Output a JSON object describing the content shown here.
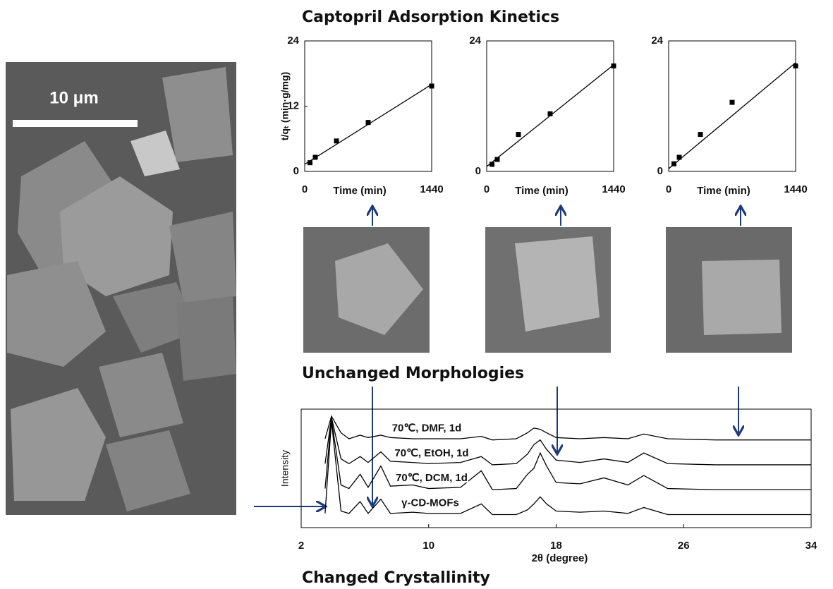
{
  "title": "Captopril Adsorption Kinetics",
  "middle_caption": "Unchanged Morphologies",
  "bottom_caption": "Changed Crystallinity",
  "scale_bar": "10 μm",
  "chart_data": [
    {
      "type": "scatter",
      "ylabel": "t/qₜ (min·g/mg)",
      "xlabel": "Time (min)",
      "x": [
        60,
        120,
        360,
        720,
        1440
      ],
      "values": [
        1.6,
        2.6,
        5.6,
        9.0,
        15.7
      ],
      "fit": {
        "x": [
          0,
          1440
        ],
        "values": [
          1.3,
          16
        ]
      },
      "xlim": [
        0,
        1440
      ],
      "ylim": [
        0,
        24
      ],
      "xticks": [
        0,
        1440
      ],
      "yticks": [
        0,
        12,
        24
      ],
      "color": "#000000"
    },
    {
      "type": "scatter",
      "xlabel": "Time (min)",
      "x": [
        60,
        120,
        360,
        720,
        1440
      ],
      "values": [
        1.3,
        2.2,
        6.8,
        10.6,
        19.4
      ],
      "fit": {
        "x": [
          0,
          1440
        ],
        "values": [
          0.9,
          19.6
        ]
      },
      "xlim": [
        0,
        1440
      ],
      "ylim": [
        0,
        24
      ],
      "xticks": [
        0,
        1440
      ],
      "yticks": [
        0,
        24
      ],
      "color": "#000000"
    },
    {
      "type": "scatter",
      "xlabel": "Time (min)",
      "x": [
        60,
        120,
        360,
        720,
        1440
      ],
      "values": [
        1.4,
        2.6,
        6.8,
        12.7,
        19.4
      ],
      "fit": {
        "x": [
          0,
          1440
        ],
        "values": [
          0.5,
          20
        ]
      },
      "xlim": [
        0,
        1440
      ],
      "ylim": [
        0,
        24
      ],
      "xticks": [
        0,
        1440
      ],
      "yticks": [
        0,
        24
      ],
      "color": "#000000"
    },
    {
      "type": "line",
      "xlabel": "2θ (degree)",
      "ylabel": "Intensity",
      "xlim": [
        2,
        34
      ],
      "ylim": [
        0,
        100
      ],
      "xticks": [
        2,
        10,
        18,
        26,
        34
      ],
      "color": "#000000",
      "x": [
        3.5,
        3.9,
        4.5,
        5.0,
        5.7,
        6.2,
        7.0,
        7.6,
        9.0,
        10.0,
        12.0,
        13.3,
        14.0,
        15.5,
        16.2,
        16.6,
        17.0,
        17.4,
        18.0,
        19.5,
        21.0,
        22.5,
        23.5,
        25.0,
        28.0,
        34.0
      ],
      "series": [
        {
          "name": "70℃, DMF, 1d",
          "values": [
            75,
            94,
            80,
            75,
            78,
            76,
            78,
            76,
            75,
            75,
            75,
            77,
            74,
            75,
            80,
            84,
            83,
            80,
            76,
            75,
            76,
            75,
            79,
            75,
            74,
            74
          ]
        },
        {
          "name": "70℃, EtOH, 1d",
          "values": [
            54,
            93,
            58,
            54,
            60,
            55,
            64,
            56,
            55,
            54,
            55,
            60,
            53,
            54,
            62,
            70,
            74,
            66,
            57,
            55,
            58,
            55,
            63,
            54,
            53,
            53
          ]
        },
        {
          "name": "70℃, DCM, 1d",
          "values": [
            33,
            92,
            36,
            33,
            45,
            34,
            52,
            35,
            36,
            33,
            34,
            48,
            32,
            33,
            45,
            50,
            63,
            52,
            38,
            37,
            42,
            36,
            44,
            33,
            32,
            32
          ]
        },
        {
          "name": "γ-CD-MOFs",
          "values": [
            12,
            90,
            14,
            12,
            22,
            12,
            24,
            12,
            13,
            12,
            12,
            20,
            11,
            11,
            15,
            20,
            26,
            20,
            14,
            13,
            14,
            12,
            17,
            11,
            11,
            11
          ]
        }
      ]
    }
  ]
}
